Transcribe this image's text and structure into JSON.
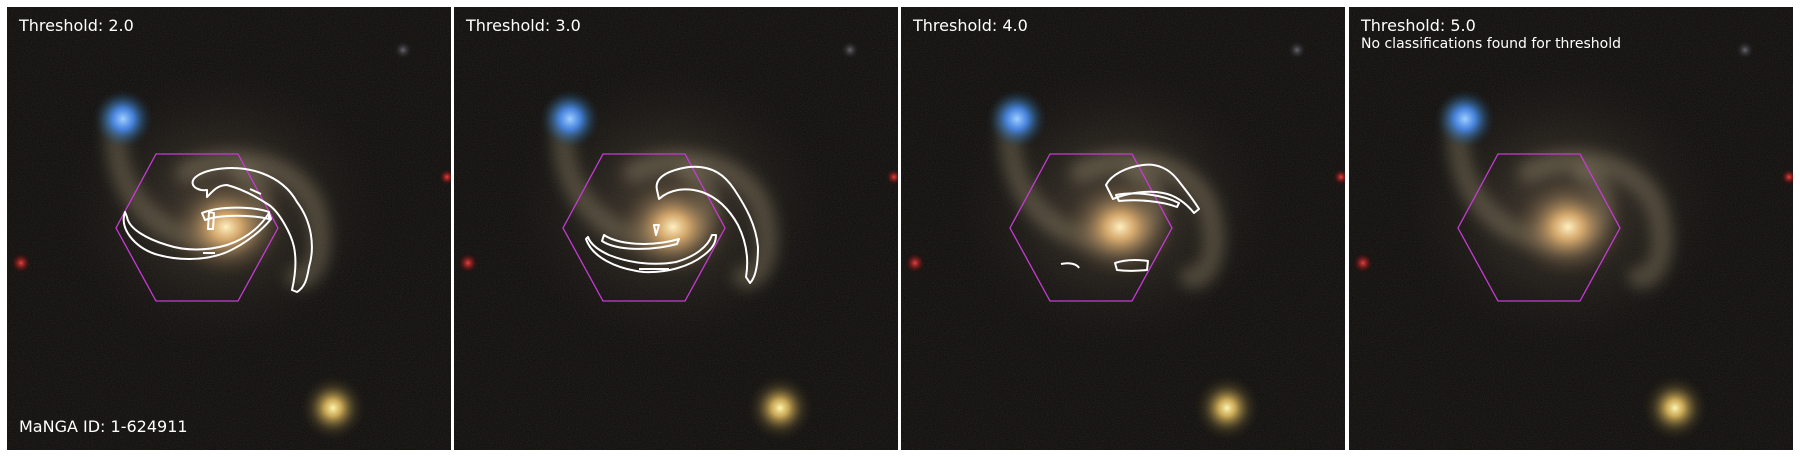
{
  "figure": {
    "manga_id_label": "MaNGA ID: 1-624911",
    "panels": [
      {
        "threshold_label": "Threshold: 2.0",
        "note": "",
        "spiral_arm_contours": "visible"
      },
      {
        "threshold_label": "Threshold: 3.0",
        "note": "",
        "spiral_arm_contours": "visible"
      },
      {
        "threshold_label": "Threshold: 4.0",
        "note": "",
        "spiral_arm_contours": "visible"
      },
      {
        "threshold_label": "Threshold: 5.0",
        "note": "No classifications found for threshold",
        "spiral_arm_contours": "none"
      }
    ]
  },
  "colors": {
    "hexagon": "#c83ad6",
    "contour": "#ffffff",
    "background": "#0c0b09"
  }
}
